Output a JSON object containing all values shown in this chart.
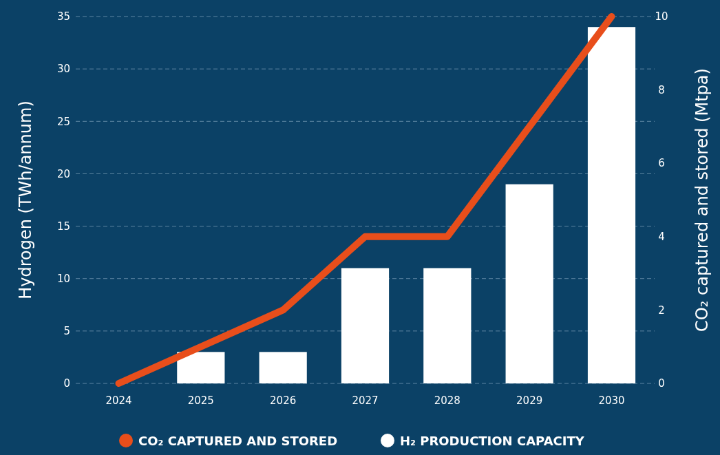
{
  "chart_data": {
    "type": "bar",
    "categories": [
      "2024",
      "2025",
      "2026",
      "2027",
      "2028",
      "2029",
      "2030"
    ],
    "series": [
      {
        "name": "CO₂ CAPTURED AND STORED",
        "type": "line",
        "axis": "y2",
        "color": "#e84e1b",
        "values": [
          0,
          1,
          2,
          4,
          4,
          7,
          10
        ]
      },
      {
        "name": "H₂ PRODUCTION CAPACITY",
        "color": "#ffffff",
        "values": [
          0,
          3,
          3,
          11,
          11,
          19,
          34
        ]
      }
    ],
    "ylabel": "Hydrogen (TWh/annum)",
    "y2label": "CO₂ captured and stored (Mtpa)",
    "ylim": [
      0,
      35
    ],
    "yticks": [
      0,
      5,
      10,
      15,
      20,
      25,
      30,
      35
    ],
    "y2lim": [
      0,
      10
    ],
    "y2ticks": [
      0,
      2,
      4,
      6,
      8,
      10
    ],
    "grid": "y",
    "legend": "bottom",
    "marker": "none",
    "line_style": "solid"
  }
}
